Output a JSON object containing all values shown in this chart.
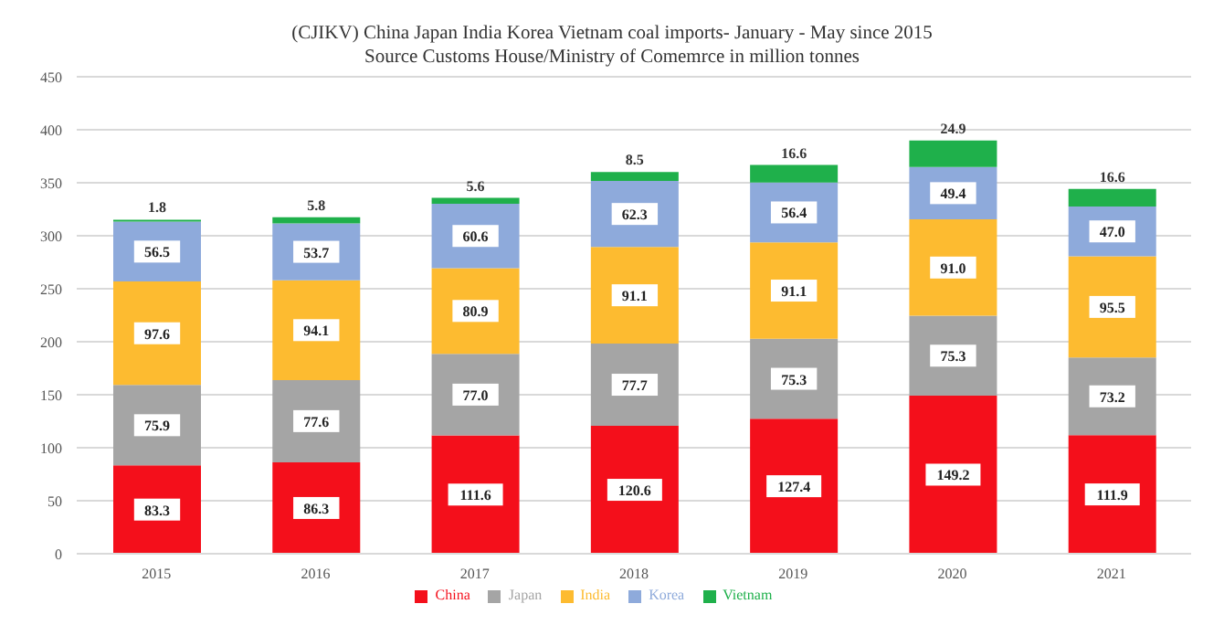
{
  "chart_data": {
    "type": "bar",
    "stacked": true,
    "title": "(CJIKV) China Japan India Korea Vietnam coal imports- January - May since 2015",
    "subtitle": "Source Customs House/Ministry of Comemrce in million tonnes",
    "categories": [
      "2015",
      "2016",
      "2017",
      "2018",
      "2019",
      "2020",
      "2021"
    ],
    "series": [
      {
        "name": "China",
        "color": "#f40f1b",
        "values": [
          83.3,
          86.3,
          111.6,
          120.6,
          127.4,
          149.2,
          111.9
        ],
        "value_labels": [
          "83.3",
          "86.3",
          "111.6",
          "120.6",
          "127.4",
          "149.2",
          "111.9"
        ]
      },
      {
        "name": "Japan",
        "color": "#a5a5a5",
        "values": [
          75.9,
          77.6,
          77.0,
          77.7,
          75.3,
          75.3,
          73.2
        ],
        "value_labels": [
          "75.9",
          "77.6",
          "77.0",
          "77.7",
          "75.3",
          "75.3",
          "73.2"
        ]
      },
      {
        "name": "India",
        "color": "#fdbb30",
        "values": [
          97.6,
          94.1,
          80.9,
          91.1,
          91.1,
          91.0,
          95.5
        ],
        "value_labels": [
          "97.6",
          "94.1",
          "80.9",
          "91.1",
          "91.1",
          "91.0",
          "95.5"
        ]
      },
      {
        "name": "Korea",
        "color": "#8eaadb",
        "values": [
          56.5,
          53.7,
          60.6,
          62.3,
          56.4,
          49.4,
          47.0
        ],
        "value_labels": [
          "56.5",
          "53.7",
          "60.6",
          "62.3",
          "56.4",
          "49.4",
          "47.0"
        ]
      },
      {
        "name": "Vietnam",
        "color": "#1fb04b",
        "values": [
          1.8,
          5.8,
          5.6,
          8.5,
          16.6,
          24.9,
          16.6
        ],
        "value_labels": [
          "1.8",
          "5.8",
          "5.6",
          "8.5",
          "16.6",
          "24.9",
          "16.6"
        ]
      }
    ],
    "ylim": [
      0,
      450
    ],
    "yticks": [
      0,
      50,
      100,
      150,
      200,
      250,
      300,
      350,
      400,
      450
    ],
    "grid": "y",
    "legend": "bottom"
  }
}
